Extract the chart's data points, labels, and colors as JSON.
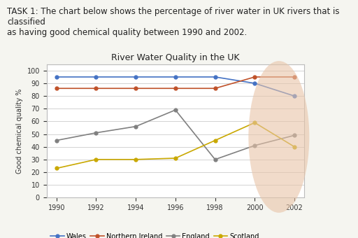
{
  "task_text": "TASK 1: The chart below shows the percentage of river water in UK rivers that is classified\nas having good chemical quality between 1990 and 2002.",
  "title": "River Water Quality in the UK",
  "ylabel": "Good chemical quality %",
  "years": [
    1990,
    1992,
    1994,
    1996,
    1998,
    2000,
    2002
  ],
  "series": {
    "Wales": {
      "values": [
        95,
        95,
        95,
        95,
        95,
        90,
        80
      ],
      "color": "#4472C4",
      "marker": "o",
      "markersize": 3.5
    },
    "Northern Ireland": {
      "values": [
        86,
        86,
        86,
        86,
        86,
        95,
        95
      ],
      "color": "#C0522A",
      "marker": "o",
      "markersize": 3.5
    },
    "England": {
      "values": [
        45,
        51,
        56,
        69,
        30,
        41,
        49
      ],
      "color": "#808080",
      "marker": "o",
      "markersize": 3.5
    },
    "Scotland": {
      "values": [
        23,
        30,
        30,
        31,
        45,
        59,
        40
      ],
      "color": "#C9A800",
      "marker": "o",
      "markersize": 3.5
    }
  },
  "xlim": [
    1989.5,
    2002.5
  ],
  "ylim": [
    0,
    105
  ],
  "yticks": [
    0,
    10,
    20,
    30,
    40,
    50,
    60,
    70,
    80,
    90,
    100
  ],
  "xticks": [
    1990,
    1992,
    1994,
    1996,
    1998,
    2000,
    2002
  ],
  "legend_order": [
    "Wales",
    "Northern Ireland",
    "England",
    "Scotland"
  ],
  "page_bg": "#f5f5f0",
  "chart_bg": "#ffffff",
  "border_color": "#bbbbbb",
  "grid_color": "#cccccc",
  "title_fontsize": 9,
  "axis_label_fontsize": 7,
  "tick_fontsize": 7,
  "legend_fontsize": 7,
  "task_fontsize": 8.5
}
